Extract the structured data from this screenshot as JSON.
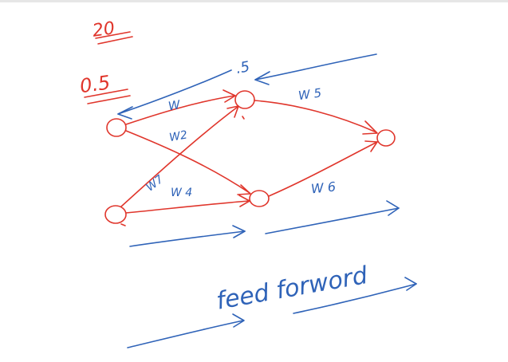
{
  "annotations": {
    "top_value": "20",
    "input_value": "0.5",
    "hidden_value": ".5",
    "caption": "feed forword"
  },
  "weights": {
    "w1": "W",
    "w2": "W2",
    "w3": "W7",
    "w4": "W 4",
    "w5": "W 5",
    "w6": "W 6"
  },
  "colors": {
    "network": "#e0362c",
    "annotation": "#2f63b8"
  }
}
